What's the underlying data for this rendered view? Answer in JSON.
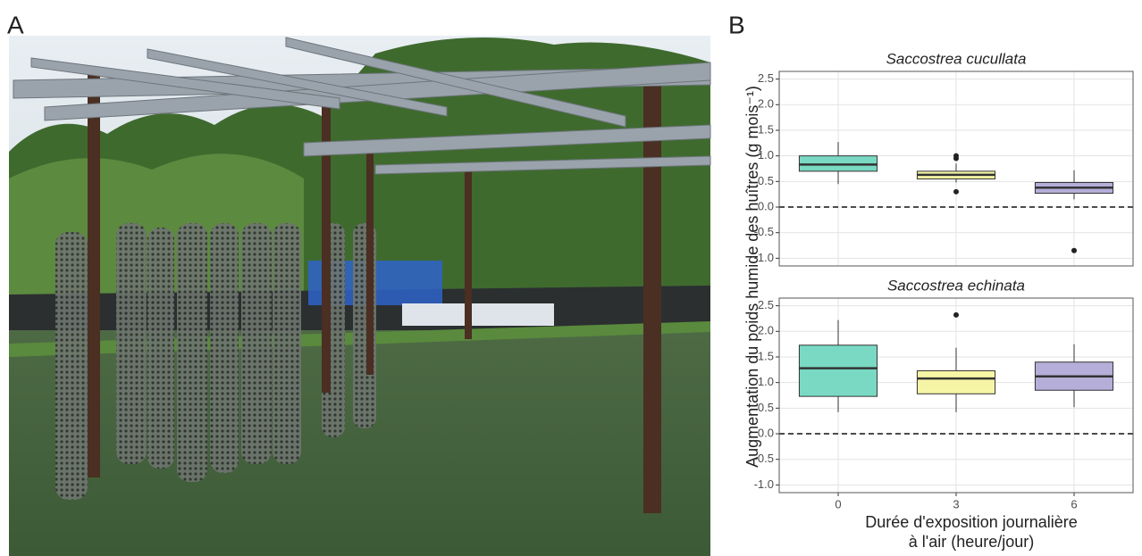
{
  "figure": {
    "panel_a": "A",
    "panel_b": "B",
    "y_label": "Augmentation du poids humide des huîtres (g mois⁻¹)",
    "x_label": [
      "Durée d'exposition journalière",
      "à l'air (heure/jour)"
    ]
  },
  "chart_data": [
    {
      "type": "box",
      "title": "Saccostrea cucullata",
      "categories": [
        "0",
        "3",
        "6"
      ],
      "colors": [
        "#79d9c3",
        "#f6f5a6",
        "#b4aed9"
      ],
      "boxes": [
        {
          "whislo": 0.45,
          "q1": 0.7,
          "med": 0.83,
          "q3": 1.0,
          "whishi": 1.27
        },
        {
          "whislo": 0.48,
          "q1": 0.55,
          "med": 0.63,
          "q3": 0.7,
          "whishi": 0.85,
          "fliers": [
            0.3,
            0.95,
            1.0
          ]
        },
        {
          "whislo": 0.15,
          "q1": 0.27,
          "med": 0.38,
          "q3": 0.48,
          "whishi": 0.72,
          "fliers": [
            -0.85
          ]
        }
      ],
      "ylim": [
        -1.15,
        2.65
      ],
      "yticks": [
        {
          "value": -1,
          "label": "-1.0"
        },
        -0.5,
        {
          "value": 0,
          "label": "0.0"
        },
        0.5,
        {
          "value": 1,
          "label": "1.0"
        },
        1.5,
        {
          "value": 2,
          "label": "2.0"
        },
        2.5
      ],
      "reference_line": 0,
      "grid": true
    },
    {
      "type": "box",
      "title": "Saccostrea echinata",
      "categories": [
        "0",
        "3",
        "6"
      ],
      "colors": [
        "#79d9c3",
        "#f6f5a6",
        "#b4aed9"
      ],
      "boxes": [
        {
          "whislo": 0.42,
          "q1": 0.73,
          "med": 1.28,
          "q3": 1.73,
          "whishi": 2.22
        },
        {
          "whislo": 0.42,
          "q1": 0.78,
          "med": 1.08,
          "q3": 1.23,
          "whishi": 1.68,
          "fliers": [
            2.32
          ]
        },
        {
          "whislo": 0.52,
          "q1": 0.85,
          "med": 1.12,
          "q3": 1.4,
          "whishi": 1.75
        }
      ],
      "ylim": [
        -1.15,
        2.65
      ],
      "yticks": [
        {
          "value": -1,
          "label": "-1.0"
        },
        -0.5,
        {
          "value": 0,
          "label": "0.0"
        },
        0.5,
        {
          "value": 1,
          "label": "1.0"
        },
        1.5,
        {
          "value": 2,
          "label": "2.0"
        },
        2.5
      ],
      "reference_line": 0,
      "grid": true
    }
  ]
}
